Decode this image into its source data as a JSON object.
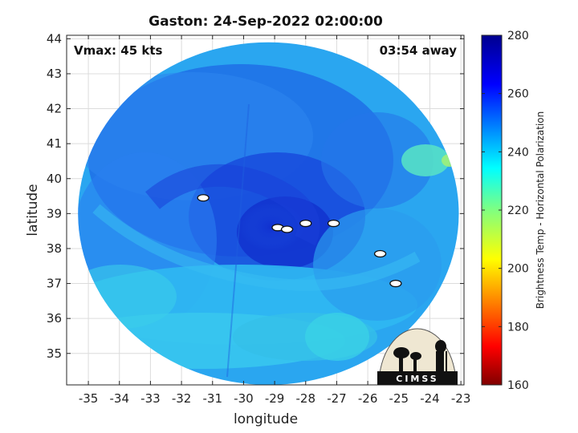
{
  "chart_data": {
    "type": "heatmap",
    "title": "Gaston: 24-Sep-2022 02:00:00",
    "xlabel": "longitude",
    "ylabel": "latitude",
    "xlim": [
      -35.7,
      -22.9
    ],
    "ylim": [
      34.1,
      44.1
    ],
    "x_ticks": [
      -35,
      -34,
      -33,
      -32,
      -31,
      -30,
      -29,
      -28,
      -27,
      -26,
      -25,
      -24,
      -23
    ],
    "y_ticks": [
      35,
      36,
      37,
      38,
      39,
      40,
      41,
      42,
      43,
      44
    ],
    "grid": true,
    "annotations": {
      "vmax": "Vmax: 45 kts",
      "time_away": "03:54 away"
    },
    "colorbar": {
      "label": "Brightness Temp - Horizontal Polarization",
      "range": [
        160,
        280
      ],
      "ticks": [
        160,
        180,
        200,
        220,
        240,
        260,
        280
      ],
      "colormap": "jet"
    },
    "swath": {
      "shape": "circular",
      "center": [
        -29.2,
        39.0
      ],
      "lat_radius": 4.9
    },
    "storm_center": [
      -28.8,
      38.8
    ],
    "contours": [
      {
        "x": -31.3,
        "y": 39.45
      },
      {
        "x": -28.9,
        "y": 38.6
      },
      {
        "x": -28.6,
        "y": 38.55
      },
      {
        "x": -28.0,
        "y": 38.72
      },
      {
        "x": -27.1,
        "y": 38.72
      },
      {
        "x": -25.6,
        "y": 37.85
      },
      {
        "x": -25.1,
        "y": 37.0
      }
    ],
    "logo": "CIMSS"
  }
}
